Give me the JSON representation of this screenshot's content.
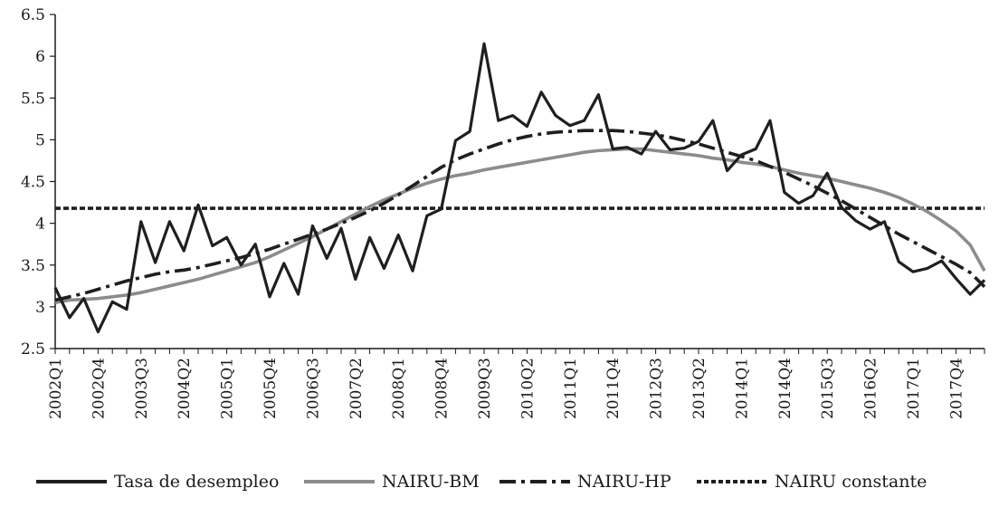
{
  "chart_data": {
    "type": "line",
    "title": "",
    "xlabel": "",
    "ylabel": "",
    "ylim": [
      2.5,
      6.5
    ],
    "yticks": [
      "2.5",
      "3",
      "3.5",
      "4",
      "4.5",
      "5",
      "5.5",
      "6",
      "6.5"
    ],
    "x": [
      "2002Q1",
      "2002Q2",
      "2002Q3",
      "2002Q4",
      "2003Q1",
      "2003Q2",
      "2003Q3",
      "2003Q4",
      "2004Q1",
      "2004Q2",
      "2004Q3",
      "2004Q4",
      "2005Q1",
      "2005Q2",
      "2005Q3",
      "2005Q4",
      "2006Q1",
      "2006Q2",
      "2006Q3",
      "2006Q4",
      "2007Q1",
      "2007Q2",
      "2007Q3",
      "2007Q4",
      "2008Q1",
      "2008Q2",
      "2008Q3",
      "2008Q4",
      "2009Q1",
      "2009Q2",
      "2009Q3",
      "2009Q4",
      "2010Q1",
      "2010Q2",
      "2010Q3",
      "2010Q4",
      "2011Q1",
      "2011Q2",
      "2011Q3",
      "2011Q4",
      "2012Q1",
      "2012Q2",
      "2012Q3",
      "2012Q4",
      "2013Q1",
      "2013Q2",
      "2013Q3",
      "2013Q4",
      "2014Q1",
      "2014Q2",
      "2014Q3",
      "2014Q4",
      "2015Q1",
      "2015Q2",
      "2015Q3",
      "2015Q4",
      "2016Q1",
      "2016Q2",
      "2016Q3",
      "2016Q4",
      "2017Q1",
      "2017Q2",
      "2017Q3",
      "2017Q4",
      "2018Q1",
      "2018Q2"
    ],
    "xtick_labels": [
      "2002Q1",
      "2002Q4",
      "2003Q3",
      "2004Q2",
      "2005Q1",
      "2005Q4",
      "2006Q3",
      "2007Q2",
      "2008Q1",
      "2008Q4",
      "2009Q3",
      "2010Q2",
      "2011Q1",
      "2011Q4",
      "2012Q3",
      "2013Q2",
      "2014Q1",
      "2014Q4",
      "2015Q3",
      "2016Q2",
      "2017Q1",
      "2017Q4"
    ],
    "grid": false,
    "legend_position": "bottom",
    "series": [
      {
        "name": "Tasa de desempleo",
        "color": "#1f1f1f",
        "style": "solid",
        "values": [
          3.23,
          2.87,
          3.1,
          2.7,
          3.06,
          2.97,
          4.02,
          3.53,
          4.02,
          3.67,
          4.22,
          3.73,
          3.83,
          3.5,
          3.75,
          3.12,
          3.52,
          3.15,
          3.97,
          3.58,
          3.94,
          3.33,
          3.83,
          3.46,
          3.86,
          3.43,
          4.09,
          4.17,
          4.99,
          5.1,
          6.15,
          5.23,
          5.29,
          5.16,
          5.57,
          5.29,
          5.17,
          5.23,
          5.54,
          4.89,
          4.91,
          4.83,
          5.1,
          4.88,
          4.9,
          4.98,
          5.23,
          4.63,
          4.82,
          4.89,
          5.23,
          4.37,
          4.24,
          4.33,
          4.6,
          4.19,
          4.03,
          3.93,
          4.02,
          3.54,
          3.42,
          3.46,
          3.55,
          3.34,
          3.15,
          3.32
        ]
      },
      {
        "name": "NAIRU-BM",
        "color": "#8c8c8c",
        "style": "solid",
        "values": [
          3.05,
          3.08,
          3.09,
          3.1,
          3.12,
          3.14,
          3.17,
          3.21,
          3.25,
          3.29,
          3.33,
          3.38,
          3.43,
          3.48,
          3.53,
          3.6,
          3.68,
          3.76,
          3.84,
          3.93,
          4.02,
          4.11,
          4.2,
          4.28,
          4.35,
          4.42,
          4.48,
          4.53,
          4.57,
          4.6,
          4.64,
          4.67,
          4.7,
          4.73,
          4.76,
          4.79,
          4.82,
          4.85,
          4.87,
          4.88,
          4.89,
          4.89,
          4.87,
          4.85,
          4.83,
          4.81,
          4.78,
          4.76,
          4.73,
          4.71,
          4.68,
          4.64,
          4.6,
          4.57,
          4.54,
          4.5,
          4.46,
          4.42,
          4.37,
          4.31,
          4.23,
          4.14,
          4.03,
          3.91,
          3.74,
          3.43
        ]
      },
      {
        "name": "NAIRU-HP",
        "color": "#1f1f1f",
        "style": "dashdot",
        "values": [
          3.08,
          3.12,
          3.16,
          3.21,
          3.26,
          3.31,
          3.35,
          3.39,
          3.42,
          3.44,
          3.47,
          3.51,
          3.55,
          3.59,
          3.64,
          3.69,
          3.75,
          3.81,
          3.87,
          3.93,
          4.0,
          4.07,
          4.15,
          4.24,
          4.34,
          4.45,
          4.56,
          4.67,
          4.76,
          4.83,
          4.89,
          4.95,
          5.0,
          5.04,
          5.07,
          5.09,
          5.1,
          5.11,
          5.11,
          5.11,
          5.1,
          5.08,
          5.06,
          5.03,
          4.99,
          4.95,
          4.9,
          4.85,
          4.8,
          4.75,
          4.68,
          4.61,
          4.53,
          4.45,
          4.36,
          4.27,
          4.17,
          4.07,
          3.97,
          3.87,
          3.78,
          3.69,
          3.6,
          3.51,
          3.41,
          3.24
        ]
      },
      {
        "name": "NAIRU constante",
        "color": "#1f1f1f",
        "style": "dotted",
        "values": [
          4.18,
          4.18,
          4.18,
          4.18,
          4.18,
          4.18,
          4.18,
          4.18,
          4.18,
          4.18,
          4.18,
          4.18,
          4.18,
          4.18,
          4.18,
          4.18,
          4.18,
          4.18,
          4.18,
          4.18,
          4.18,
          4.18,
          4.18,
          4.18,
          4.18,
          4.18,
          4.18,
          4.18,
          4.18,
          4.18,
          4.18,
          4.18,
          4.18,
          4.18,
          4.18,
          4.18,
          4.18,
          4.18,
          4.18,
          4.18,
          4.18,
          4.18,
          4.18,
          4.18,
          4.18,
          4.18,
          4.18,
          4.18,
          4.18,
          4.18,
          4.18,
          4.18,
          4.18,
          4.18,
          4.18,
          4.18,
          4.18,
          4.18,
          4.18,
          4.18,
          4.18,
          4.18,
          4.18,
          4.18,
          4.18,
          4.18
        ]
      }
    ]
  }
}
